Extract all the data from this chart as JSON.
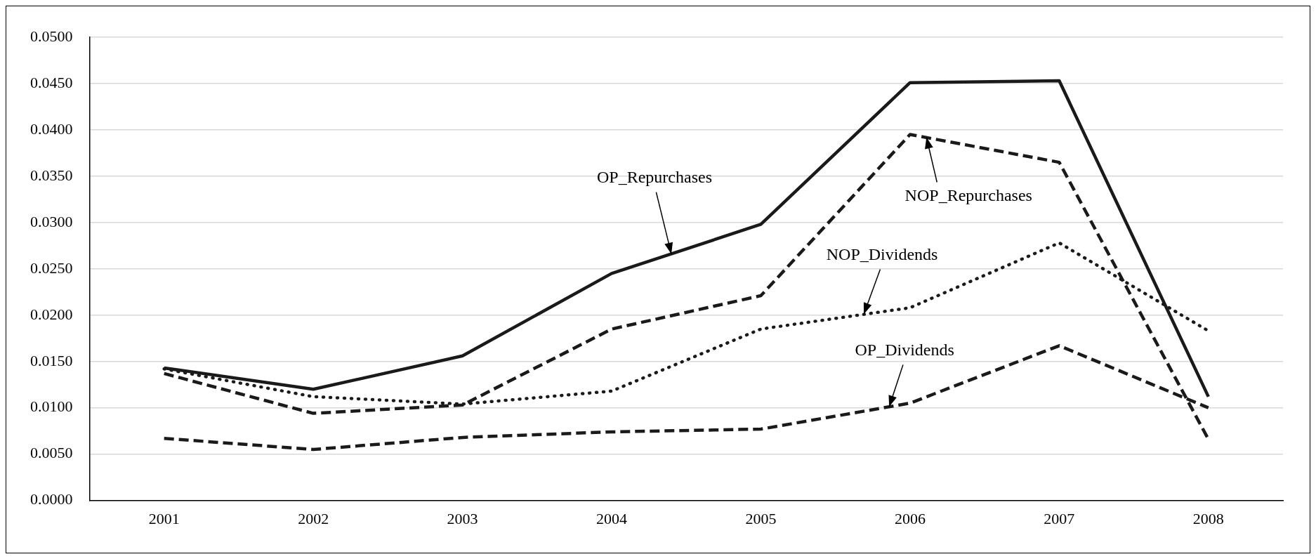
{
  "chart_data": {
    "type": "line",
    "x": [
      2001,
      2002,
      2003,
      2004,
      2005,
      2006,
      2007,
      2008
    ],
    "xlim": [
      2000.5,
      2008.5
    ],
    "xticks": [
      2001,
      2002,
      2003,
      2004,
      2005,
      2006,
      2007,
      2008
    ],
    "ylim": [
      0,
      0.05
    ],
    "yticks": [
      {
        "value": 0,
        "label": "0.0000"
      },
      {
        "value": 0.005,
        "label": "0.0050"
      },
      {
        "value": 0.01,
        "label": "0.0100"
      },
      {
        "value": 0.015,
        "label": "0.0150"
      },
      {
        "value": 0.02,
        "label": "0.0200"
      },
      {
        "value": 0.025,
        "label": "0.0250"
      },
      {
        "value": 0.03,
        "label": "0.0300"
      },
      {
        "value": 0.035,
        "label": "0.0350"
      },
      {
        "value": 0.04,
        "label": "0.0400"
      },
      {
        "value": 0.045,
        "label": "0.0450"
      },
      {
        "value": 0.05,
        "label": "0.0500"
      }
    ],
    "grid": "y",
    "legend": false,
    "marker": "none",
    "series": [
      {
        "color": "#1a1a1a",
        "line_style": "solid",
        "values": [
          0.0143,
          0.012,
          0.0156,
          0.0245,
          0.0298,
          0.0451,
          0.0453,
          0.0112
        ]
      },
      {
        "color": "#1a1a1a",
        "line_style": "dashed",
        "values": [
          0.0137,
          0.0094,
          0.0103,
          0.0185,
          0.0221,
          0.0395,
          0.0365,
          0.0066
        ]
      },
      {
        "color": "#1a1a1a",
        "line_style": "dotted",
        "values": [
          0.0142,
          0.0112,
          0.0104,
          0.0118,
          0.0185,
          0.0208,
          0.0278,
          0.0183
        ]
      },
      {
        "color": "#1a1a1a",
        "line_style": "dashed",
        "values": [
          0.0067,
          0.0055,
          0.0068,
          0.0074,
          0.0077,
          0.0105,
          0.0167,
          0.01
        ]
      }
    ],
    "annotations": [
      {
        "text": "OP_Repurchases",
        "x": 2004.4,
        "y": 0.0266
      },
      {
        "text": "NOP_Repurchases",
        "x": 2006.11,
        "y": 0.0392
      },
      {
        "text": "NOP_Dividends",
        "x": 2005.69,
        "y": 0.0201
      },
      {
        "text": "OP_Dividends",
        "x": 2005.86,
        "y": 0.0101
      }
    ]
  }
}
